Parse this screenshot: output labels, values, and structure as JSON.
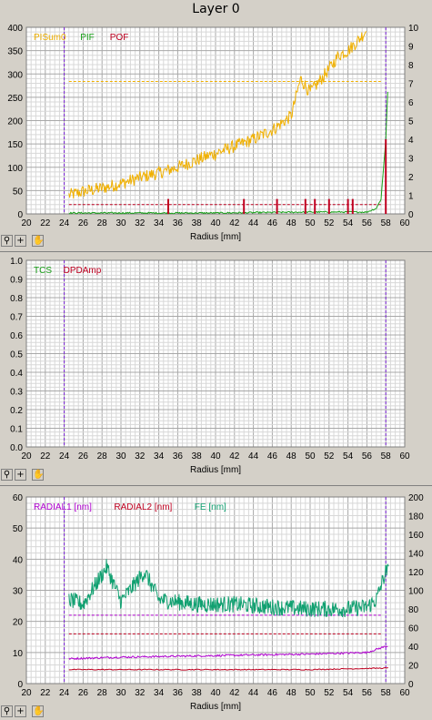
{
  "window": {
    "title": "Layer 0"
  },
  "toolbar": {
    "zoom_glyph": "⚲",
    "plus_glyph": "+",
    "hand_glyph": "✋"
  },
  "charts": [
    {
      "id": "top",
      "xlabel": "Radius [mm]",
      "xticks": [
        20,
        22,
        24,
        26,
        28,
        30,
        32,
        34,
        36,
        38,
        40,
        42,
        44,
        46,
        48,
        50,
        52,
        54,
        56,
        58,
        60
      ],
      "xlim": [
        20,
        60
      ],
      "left_ticks": [
        0,
        50,
        100,
        150,
        200,
        250,
        300,
        350,
        400
      ],
      "left_lim": [
        0,
        400
      ],
      "right_ticks": [
        0,
        1,
        2,
        3,
        4,
        5,
        6,
        7,
        8,
        9,
        10
      ],
      "right_lim": [
        0,
        10
      ],
      "marker_lines": [
        24,
        58
      ],
      "legend": [
        {
          "label": "PISum0",
          "color": "#f0b000"
        },
        {
          "label": "PIF",
          "color": "#18a018"
        },
        {
          "label": "POF",
          "color": "#c00020"
        }
      ],
      "ref_lines": [
        {
          "y": 7.1,
          "color": "#f0b000",
          "axis": "right"
        },
        {
          "y": 0.5,
          "color": "#c00020",
          "axis": "right"
        }
      ]
    },
    {
      "id": "mid",
      "xlabel": "Radius [mm]",
      "xticks": [
        20,
        22,
        24,
        26,
        28,
        30,
        32,
        34,
        36,
        38,
        40,
        42,
        44,
        46,
        48,
        50,
        52,
        54,
        56,
        58,
        60
      ],
      "xlim": [
        20,
        60
      ],
      "left_ticks": [
        "0.0",
        "0.1",
        "0.2",
        "0.3",
        "0.4",
        "0.5",
        "0.6",
        "0.7",
        "0.8",
        "0.9",
        "1.0"
      ],
      "left_lim": [
        0,
        1
      ],
      "marker_lines": [
        24,
        58
      ],
      "legend": [
        {
          "label": "TCS",
          "color": "#18a018"
        },
        {
          "label": "DPDAmp",
          "color": "#c00020"
        }
      ]
    },
    {
      "id": "bot",
      "xlabel": "Radius [mm]",
      "xticks": [
        20,
        22,
        24,
        26,
        28,
        30,
        32,
        34,
        36,
        38,
        40,
        42,
        44,
        46,
        48,
        50,
        52,
        54,
        56,
        58,
        60
      ],
      "xlim": [
        20,
        60
      ],
      "left_ticks": [
        0,
        10,
        20,
        30,
        40,
        50,
        60
      ],
      "left_lim": [
        0,
        60
      ],
      "right_ticks": [
        0,
        20,
        40,
        60,
        80,
        100,
        120,
        140,
        160,
        180,
        200
      ],
      "right_lim": [
        0,
        200
      ],
      "marker_lines": [
        24,
        58
      ],
      "legend": [
        {
          "label": "RADIAL1 [nm]",
          "color": "#b000d0"
        },
        {
          "label": "RADIAL2 [nm]",
          "color": "#c00020"
        },
        {
          "label": "FE [nm]",
          "color": "#10a070"
        }
      ],
      "ref_lines": [
        {
          "y": 22,
          "color": "#b000d0",
          "axis": "left"
        },
        {
          "y": 16,
          "color": "#c00020",
          "axis": "left"
        }
      ]
    }
  ],
  "chart_data": [
    {
      "type": "line",
      "xlabel": "Radius [mm]",
      "xlim": [
        20,
        60
      ],
      "ylim": [
        0,
        400
      ],
      "y2lim": [
        0,
        10
      ],
      "series": [
        {
          "name": "PISum0",
          "axis": "left",
          "x": [
            24.5,
            26,
            28,
            30,
            32,
            34,
            36,
            38,
            40,
            42,
            44,
            46,
            48,
            49,
            50,
            52,
            53,
            54,
            55,
            56
          ],
          "values": [
            40,
            48,
            55,
            65,
            78,
            88,
            100,
            115,
            130,
            145,
            160,
            180,
            210,
            290,
            260,
            310,
            340,
            350,
            370,
            395
          ]
        },
        {
          "name": "PIF",
          "axis": "right",
          "x": [
            24.5,
            30,
            40,
            50,
            56,
            57,
            57.5,
            58,
            58.3
          ],
          "values": [
            0.05,
            0.05,
            0.05,
            0.1,
            0.1,
            0.3,
            0.8,
            4.0,
            7.8
          ]
        },
        {
          "name": "POF",
          "axis": "right",
          "x": [
            35,
            43,
            46.5,
            49.5,
            50.5,
            52,
            54,
            54.5,
            58
          ],
          "values": [
            0.8,
            0.8,
            0.8,
            0.8,
            0.8,
            0.8,
            0.8,
            0.8,
            4.0
          ]
        }
      ]
    },
    {
      "type": "line",
      "xlabel": "Radius [mm]",
      "xlim": [
        20,
        60
      ],
      "ylim": [
        0,
        1
      ],
      "series": [
        {
          "name": "TCS",
          "values": []
        },
        {
          "name": "DPDAmp",
          "values": []
        }
      ]
    },
    {
      "type": "line",
      "xlabel": "Radius [mm]",
      "xlim": [
        20,
        60
      ],
      "ylim": [
        0,
        60
      ],
      "y2lim": [
        0,
        200
      ],
      "series": [
        {
          "name": "RADIAL1 [nm]",
          "axis": "left",
          "x": [
            24.5,
            30,
            40,
            50,
            56,
            57,
            58
          ],
          "values": [
            8,
            8.5,
            9,
            9.5,
            10,
            11,
            12
          ]
        },
        {
          "name": "RADIAL2 [nm]",
          "axis": "left",
          "x": [
            24.5,
            30,
            40,
            50,
            58
          ],
          "values": [
            4.5,
            4.5,
            4.5,
            4.5,
            5
          ]
        },
        {
          "name": "FE [nm]",
          "axis": "right",
          "x": [
            24.5,
            26,
            28.5,
            30,
            32.5,
            34,
            38,
            42,
            46,
            50,
            54,
            56,
            57,
            58
          ],
          "values": [
            90,
            85,
            125,
            88,
            120,
            90,
            85,
            85,
            82,
            80,
            80,
            82,
            90,
            120
          ]
        }
      ]
    }
  ]
}
